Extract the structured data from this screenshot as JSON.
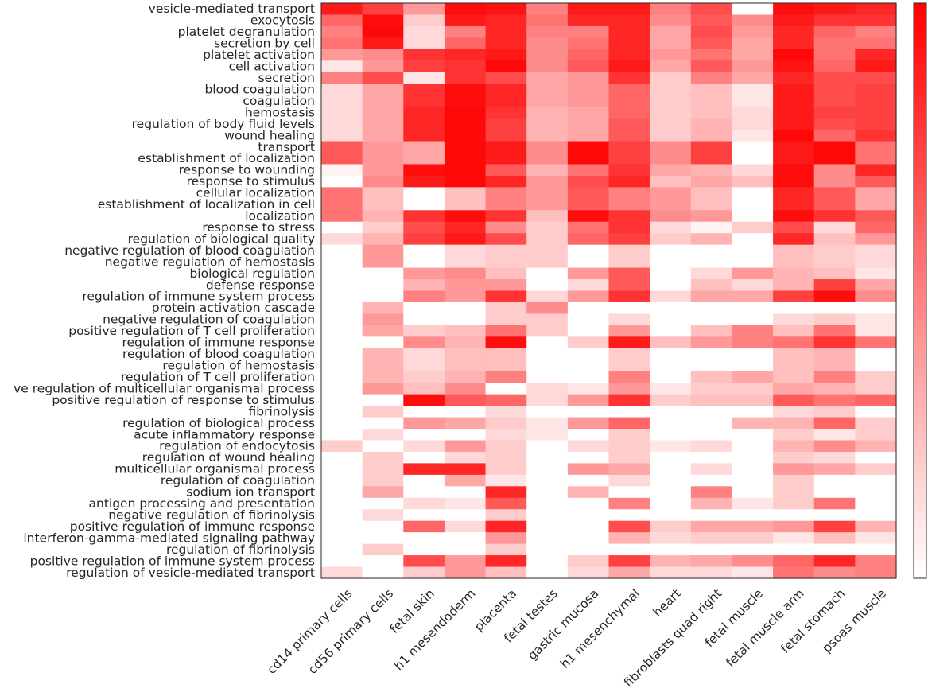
{
  "chart_data": {
    "type": "heatmap",
    "title": "",
    "xlabel": "",
    "ylabel": "",
    "value_range": [
      0,
      1
    ],
    "colormap": {
      "low": "#ffffff",
      "high": "#ff0000"
    },
    "colorbar": true,
    "columns": [
      "cd14 primary cells",
      "cd56 primary cells",
      "fetal skin",
      "h1 mesendoderm",
      "placenta",
      "fetal testes",
      "gastric mucosa",
      "h1 mesenchymal",
      "heart",
      "fibroblasts quad right",
      "fetal muscle",
      "fetal muscle arm",
      "fetal stomach",
      "psoas muscle"
    ],
    "rows": [
      "vesicle-mediated transport",
      "exocytosis",
      "platelet degranulation",
      "secretion by cell",
      "platelet activation",
      "cell activation",
      "secretion",
      "blood coagulation",
      "coagulation",
      "hemostasis",
      "regulation of body fluid levels",
      "wound healing",
      "transport",
      "establishment of localization",
      "response to wounding",
      "response to stimulus",
      "cellular localization",
      "establishment of localization in cell",
      "localization",
      "response to stress",
      "regulation of biological quality",
      "negative regulation of blood coagulation",
      "negative regulation of hemostasis",
      "biological regulation",
      "defense response",
      "regulation of immune system process",
      "protein activation cascade",
      "negative regulation of coagulation",
      "positive regulation of T cell proliferation",
      "regulation of immune response",
      "regulation of blood coagulation",
      "regulation of hemostasis",
      "regulation of T cell proliferation",
      "ve regulation of multicellular organismal process",
      "positive regulation of response to stimulus",
      "fibrinolysis",
      "regulation of biological process",
      "acute inflammatory response",
      "regulation of endocytosis",
      "regulation of wound healing",
      "multicellular organismal process",
      "regulation of coagulation",
      "sodium ion transport",
      "antigen processing and presentation",
      "negative regulation of fibrinolysis",
      "positive regulation of immune response",
      "interferon-gamma-mediated signaling pathway",
      "regulation of fibrinolysis",
      "positive regulation of immune system process",
      "regulation of vesicle-mediated transport"
    ],
    "values": [
      [
        0.9,
        0.75,
        0.4,
        0.95,
        0.92,
        0.5,
        0.9,
        0.9,
        0.5,
        0.7,
        0.0,
        0.95,
        0.9,
        0.85
      ],
      [
        0.6,
        0.95,
        0.2,
        0.9,
        0.85,
        0.55,
        0.85,
        0.85,
        0.45,
        0.65,
        0.45,
        0.9,
        0.8,
        0.8
      ],
      [
        0.5,
        0.97,
        0.15,
        0.5,
        0.85,
        0.5,
        0.5,
        0.85,
        0.35,
        0.7,
        0.4,
        0.85,
        0.6,
        0.5
      ],
      [
        0.55,
        0.9,
        0.15,
        0.6,
        0.85,
        0.45,
        0.55,
        0.85,
        0.35,
        0.65,
        0.35,
        0.85,
        0.55,
        0.55
      ],
      [
        0.4,
        0.45,
        0.8,
        0.85,
        0.9,
        0.45,
        0.6,
        0.85,
        0.4,
        0.55,
        0.35,
        0.97,
        0.55,
        0.85
      ],
      [
        0.1,
        0.4,
        0.75,
        0.8,
        0.97,
        0.45,
        0.65,
        0.9,
        0.35,
        0.65,
        0.4,
        0.92,
        0.6,
        0.9
      ],
      [
        0.5,
        0.7,
        0.1,
        0.8,
        0.7,
        0.35,
        0.4,
        0.8,
        0.2,
        0.5,
        0.35,
        0.85,
        0.7,
        0.7
      ],
      [
        0.15,
        0.35,
        0.8,
        0.95,
        0.85,
        0.35,
        0.4,
        0.6,
        0.2,
        0.25,
        0.1,
        0.9,
        0.7,
        0.75
      ],
      [
        0.15,
        0.35,
        0.8,
        0.95,
        0.85,
        0.35,
        0.4,
        0.6,
        0.2,
        0.25,
        0.1,
        0.9,
        0.7,
        0.75
      ],
      [
        0.15,
        0.35,
        0.85,
        0.97,
        0.8,
        0.3,
        0.35,
        0.6,
        0.2,
        0.25,
        0.15,
        0.9,
        0.75,
        0.75
      ],
      [
        0.15,
        0.35,
        0.85,
        0.97,
        0.75,
        0.3,
        0.35,
        0.65,
        0.2,
        0.3,
        0.15,
        0.9,
        0.7,
        0.75
      ],
      [
        0.15,
        0.35,
        0.85,
        0.97,
        0.75,
        0.3,
        0.35,
        0.65,
        0.2,
        0.3,
        0.1,
        0.97,
        0.6,
        0.8
      ],
      [
        0.65,
        0.4,
        0.35,
        0.97,
        0.9,
        0.45,
        0.97,
        0.75,
        0.45,
        0.75,
        0.0,
        0.9,
        0.97,
        0.55
      ],
      [
        0.65,
        0.4,
        0.35,
        0.97,
        0.9,
        0.45,
        0.97,
        0.75,
        0.45,
        0.75,
        0.0,
        0.9,
        0.97,
        0.55
      ],
      [
        0.05,
        0.4,
        0.95,
        0.97,
        0.65,
        0.3,
        0.55,
        0.8,
        0.35,
        0.3,
        0.15,
        0.95,
        0.45,
        0.85
      ],
      [
        0.0,
        0.45,
        0.9,
        0.97,
        0.85,
        0.4,
        0.7,
        0.85,
        0.25,
        0.35,
        0.25,
        0.95,
        0.45,
        0.65
      ],
      [
        0.55,
        0.25,
        0.0,
        0.25,
        0.5,
        0.4,
        0.65,
        0.5,
        0.4,
        0.25,
        0.0,
        0.85,
        0.65,
        0.35
      ],
      [
        0.55,
        0.25,
        0.0,
        0.25,
        0.5,
        0.4,
        0.65,
        0.5,
        0.4,
        0.25,
        0.0,
        0.85,
        0.65,
        0.35
      ],
      [
        0.55,
        0.3,
        0.8,
        0.95,
        0.8,
        0.25,
        0.95,
        0.8,
        0.45,
        0.4,
        0.0,
        0.95,
        0.8,
        0.65
      ],
      [
        0.0,
        0.2,
        0.7,
        0.85,
        0.45,
        0.2,
        0.55,
        0.8,
        0.15,
        0.05,
        0.2,
        0.7,
        0.15,
        0.6
      ],
      [
        0.15,
        0.3,
        0.75,
        0.9,
        0.7,
        0.2,
        0.6,
        0.75,
        0.2,
        0.3,
        0.0,
        0.85,
        0.25,
        0.4
      ],
      [
        0.0,
        0.4,
        0.0,
        0.15,
        0.2,
        0.2,
        0.0,
        0.2,
        0.0,
        0.0,
        0.0,
        0.25,
        0.2,
        0.15
      ],
      [
        0.0,
        0.4,
        0.0,
        0.15,
        0.2,
        0.2,
        0.0,
        0.2,
        0.0,
        0.0,
        0.0,
        0.25,
        0.2,
        0.15
      ],
      [
        0.0,
        0.0,
        0.4,
        0.45,
        0.25,
        0.0,
        0.4,
        0.65,
        0.0,
        0.15,
        0.4,
        0.3,
        0.25,
        0.1
      ],
      [
        0.0,
        0.0,
        0.3,
        0.4,
        0.4,
        0.0,
        0.15,
        0.65,
        0.0,
        0.25,
        0.15,
        0.3,
        0.75,
        0.35
      ],
      [
        0.0,
        0.0,
        0.5,
        0.4,
        0.8,
        0.15,
        0.4,
        0.8,
        0.15,
        0.35,
        0.35,
        0.75,
        0.95,
        0.45
      ],
      [
        0.0,
        0.3,
        0.0,
        0.0,
        0.2,
        0.45,
        0.0,
        0.0,
        0.0,
        0.0,
        0.0,
        0.0,
        0.0,
        0.0
      ],
      [
        0.0,
        0.4,
        0.0,
        0.0,
        0.2,
        0.2,
        0.0,
        0.15,
        0.0,
        0.0,
        0.0,
        0.15,
        0.2,
        0.1
      ],
      [
        0.0,
        0.35,
        0.2,
        0.25,
        0.55,
        0.2,
        0.0,
        0.4,
        0.0,
        0.25,
        0.5,
        0.25,
        0.55,
        0.1
      ],
      [
        0.0,
        0.0,
        0.45,
        0.3,
        0.95,
        0.0,
        0.2,
        0.9,
        0.25,
        0.4,
        0.5,
        0.55,
        0.8,
        0.55
      ],
      [
        0.0,
        0.3,
        0.15,
        0.25,
        0.25,
        0.0,
        0.0,
        0.2,
        0.0,
        0.0,
        0.0,
        0.25,
        0.3,
        0.0
      ],
      [
        0.0,
        0.3,
        0.15,
        0.25,
        0.25,
        0.0,
        0.0,
        0.2,
        0.0,
        0.0,
        0.0,
        0.25,
        0.3,
        0.0
      ],
      [
        0.0,
        0.3,
        0.2,
        0.3,
        0.5,
        0.0,
        0.0,
        0.5,
        0.0,
        0.25,
        0.35,
        0.25,
        0.5,
        0.2
      ],
      [
        0.0,
        0.4,
        0.25,
        0.45,
        0.0,
        0.15,
        0.1,
        0.4,
        0.1,
        0.2,
        0.2,
        0.35,
        0.3,
        0.2
      ],
      [
        0.0,
        0.0,
        0.95,
        0.65,
        0.6,
        0.15,
        0.4,
        0.8,
        0.2,
        0.25,
        0.25,
        0.65,
        0.55,
        0.6
      ],
      [
        0.0,
        0.2,
        0.0,
        0.0,
        0.15,
        0.0,
        0.0,
        0.0,
        0.0,
        0.0,
        0.0,
        0.15,
        0.2,
        0.0
      ],
      [
        0.0,
        0.0,
        0.4,
        0.35,
        0.2,
        0.1,
        0.4,
        0.6,
        0.0,
        0.0,
        0.3,
        0.3,
        0.6,
        0.2
      ],
      [
        0.0,
        0.15,
        0.0,
        0.0,
        0.15,
        0.1,
        0.0,
        0.2,
        0.0,
        0.0,
        0.0,
        0.2,
        0.1,
        0.2
      ],
      [
        0.2,
        0.0,
        0.15,
        0.4,
        0.2,
        0.0,
        0.15,
        0.2,
        0.1,
        0.15,
        0.0,
        0.3,
        0.45,
        0.3
      ],
      [
        0.0,
        0.2,
        0.0,
        0.15,
        0.2,
        0.0,
        0.0,
        0.2,
        0.0,
        0.0,
        0.0,
        0.2,
        0.15,
        0.0
      ],
      [
        0.0,
        0.2,
        0.85,
        0.85,
        0.2,
        0.0,
        0.4,
        0.35,
        0.0,
        0.15,
        0.0,
        0.4,
        0.35,
        0.2
      ],
      [
        0.0,
        0.2,
        0.0,
        0.35,
        0.1,
        0.0,
        0.0,
        0.15,
        0.0,
        0.0,
        0.0,
        0.2,
        0.0,
        0.0
      ],
      [
        0.0,
        0.35,
        0.0,
        0.0,
        0.85,
        0.0,
        0.3,
        0.0,
        0.0,
        0.5,
        0.0,
        0.2,
        0.0,
        0.0
      ],
      [
        0.0,
        0.0,
        0.15,
        0.1,
        0.65,
        0.0,
        0.0,
        0.5,
        0.0,
        0.3,
        0.1,
        0.2,
        0.55,
        0.0
      ],
      [
        0.0,
        0.15,
        0.0,
        0.0,
        0.2,
        0.0,
        0.0,
        0.0,
        0.0,
        0.0,
        0.0,
        0.0,
        0.0,
        0.0
      ],
      [
        0.0,
        0.0,
        0.6,
        0.15,
        0.85,
        0.0,
        0.0,
        0.7,
        0.2,
        0.35,
        0.35,
        0.4,
        0.75,
        0.3
      ],
      [
        0.0,
        0.0,
        0.0,
        0.0,
        0.4,
        0.0,
        0.0,
        0.3,
        0.15,
        0.2,
        0.2,
        0.1,
        0.25,
        0.1
      ],
      [
        0.0,
        0.2,
        0.0,
        0.0,
        0.2,
        0.0,
        0.0,
        0.0,
        0.0,
        0.0,
        0.0,
        0.0,
        0.0,
        0.0
      ],
      [
        0.0,
        0.0,
        0.7,
        0.4,
        0.85,
        0.0,
        0.2,
        0.75,
        0.3,
        0.35,
        0.45,
        0.6,
        0.85,
        0.5
      ],
      [
        0.15,
        0.0,
        0.2,
        0.4,
        0.25,
        0.0,
        0.15,
        0.35,
        0.15,
        0.15,
        0.1,
        0.55,
        0.45,
        0.5
      ]
    ]
  }
}
